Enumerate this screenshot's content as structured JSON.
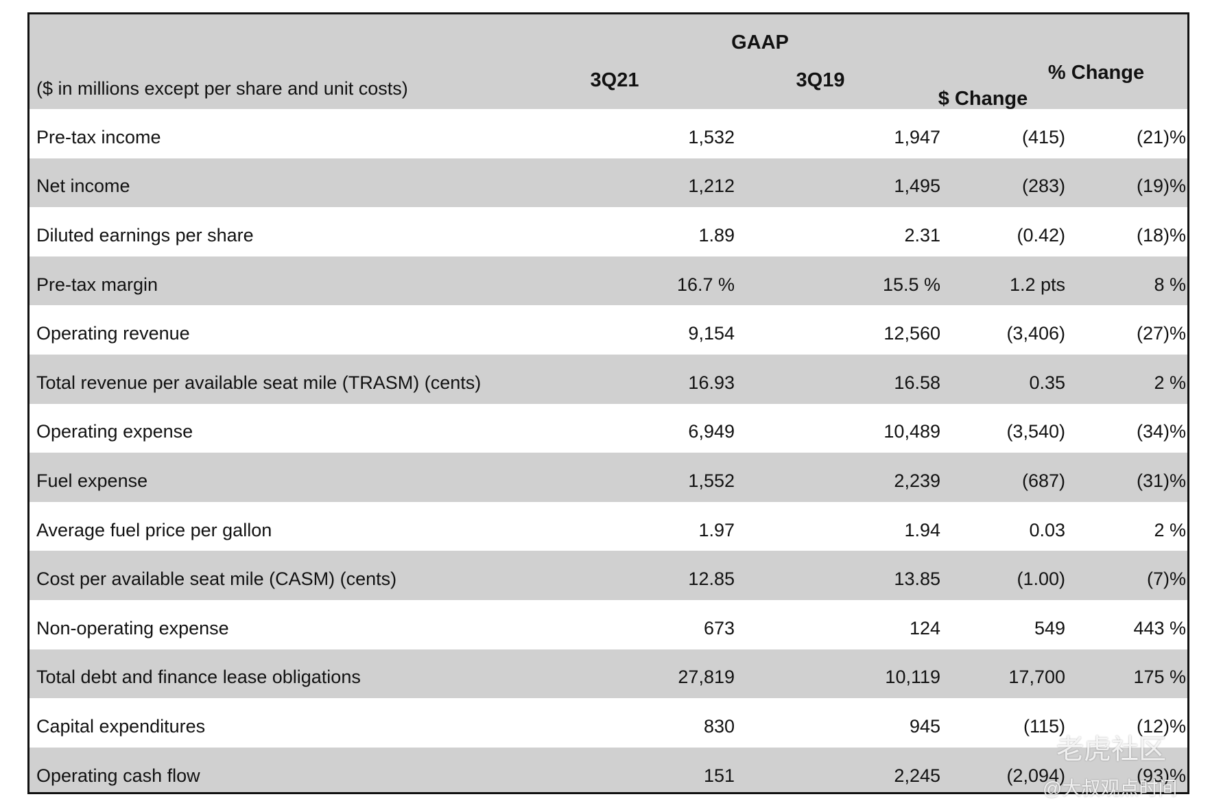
{
  "header": {
    "group": "GAAP",
    "caption": "($ in millions except per share and unit costs)",
    "columns": [
      "3Q21",
      "3Q19",
      "$ Change",
      "% Change"
    ]
  },
  "table": {
    "rows": [
      [
        "Pre-tax income",
        "1,532",
        "1,947",
        "(415)",
        "(21)%"
      ],
      [
        "Net income",
        "1,212",
        "1,495",
        "(283)",
        "(19)%"
      ],
      [
        "Diluted earnings per share",
        "1.89",
        "2.31",
        "(0.42)",
        "(18)%"
      ],
      [
        "Pre-tax margin",
        "16.7 %",
        "15.5 %",
        "1.2 pts",
        "8 %"
      ],
      [
        "Operating revenue",
        "9,154",
        "12,560",
        "(3,406)",
        "(27)%"
      ],
      [
        "Total revenue per available seat mile (TRASM) (cents)",
        "16.93",
        "16.58",
        "0.35",
        "2 %"
      ],
      [
        "Operating expense",
        "6,949",
        "10,489",
        "(3,540)",
        "(34)%"
      ],
      [
        "Fuel expense",
        "1,552",
        "2,239",
        "(687)",
        "(31)%"
      ],
      [
        "Average fuel price per gallon",
        "1.97",
        "1.94",
        "0.03",
        "2 %"
      ],
      [
        "Cost per available seat mile (CASM) (cents)",
        "12.85",
        "13.85",
        "(1.00)",
        "(7)%"
      ],
      [
        "Non-operating expense",
        "673",
        "124",
        "549",
        "443 %"
      ],
      [
        "Total debt and finance lease obligations",
        "27,819",
        "10,119",
        "17,700",
        "175 %"
      ],
      [
        "Capital expenditures",
        "830",
        "945",
        "(115)",
        "(12)%"
      ],
      [
        "Operating cash flow",
        "151",
        "2,245",
        "(2,094)",
        "(93)%"
      ]
    ]
  },
  "watermark": {
    "brand": "老虎社区",
    "author": "@大叔观点时间"
  }
}
